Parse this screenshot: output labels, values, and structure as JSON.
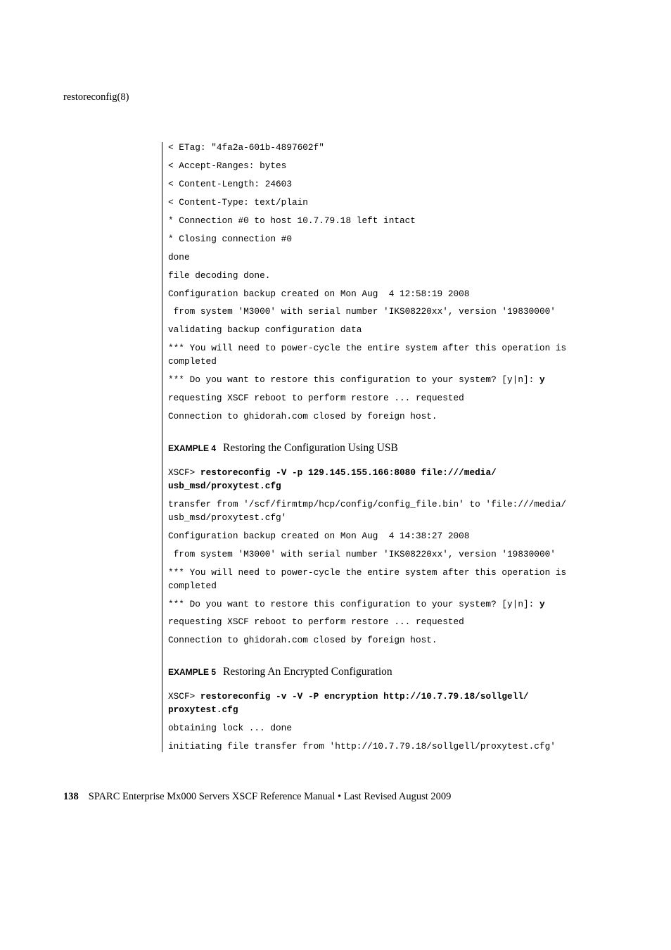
{
  "header_title": "restoreconfig(8)",
  "block1": {
    "l1": "< ETag: \"4fa2a-601b-4897602f\"",
    "l2": "< Accept-Ranges: bytes",
    "l3": "< Content-Length: 24603",
    "l4": "< Content-Type: text/plain",
    "l5": "* Connection #0 to host 10.7.79.18 left intact",
    "l6": "* Closing connection #0",
    "l7": "done",
    "l8": "file decoding done.",
    "l9": "Configuration backup created on Mon Aug  4 12:58:19 2008",
    "l10": " from system 'M3000' with serial number 'IKS08220xx', version '19830000'",
    "l11": "validating backup configuration data",
    "l12a": "*** You will need to power-cycle the entire system after this operation is ",
    "l12b": "completed",
    "l13a": "*** Do you want to restore this configuration to your system? [y|n]: ",
    "l13b": "y",
    "l14": "requesting XSCF reboot to perform restore ... requested",
    "l15": "Connection to ghidorah.com closed by foreign host."
  },
  "ex4": {
    "label": "EXAMPLE 4",
    "title": "Restoring the Configuration Using USB",
    "prompt": "XSCF> ",
    "cmd1": "restoreconfig -V -p 129.145.155.166:8080 file:///media/",
    "cmd2": "usb_msd/proxytest.cfg",
    "o1a": "transfer from '/scf/firmtmp/hcp/config/config_file.bin' to 'file:///media/",
    "o1b": "usb_msd/proxytest.cfg'",
    "o2": "Configuration backup created on Mon Aug  4 14:38:27 2008",
    "o3": " from system 'M3000' with serial number 'IKS08220xx', version '19830000'",
    "o4a": "*** You will need to power-cycle the entire system after this operation is ",
    "o4b": "completed",
    "o5a": "*** Do you want to restore this configuration to your system? [y|n]: ",
    "o5b": "y",
    "o6": "requesting XSCF reboot to perform restore ... requested",
    "o7": "Connection to ghidorah.com closed by foreign host."
  },
  "ex5": {
    "label": "EXAMPLE 5",
    "title": "Restoring An Encrypted Configuration",
    "prompt": "XSCF> ",
    "cmd1": "restoreconfig -v -V -P encryption http://10.7.79.18/sollgell/",
    "cmd2": "proxytest.cfg",
    "o1": "obtaining lock ... done",
    "o2": "initiating file transfer from 'http://10.7.79.18/sollgell/proxytest.cfg'"
  },
  "footer": {
    "pgnum": "138",
    "text": "SPARC Enterprise Mx000 Servers XSCF Reference Manual • Last Revised August 2009"
  }
}
